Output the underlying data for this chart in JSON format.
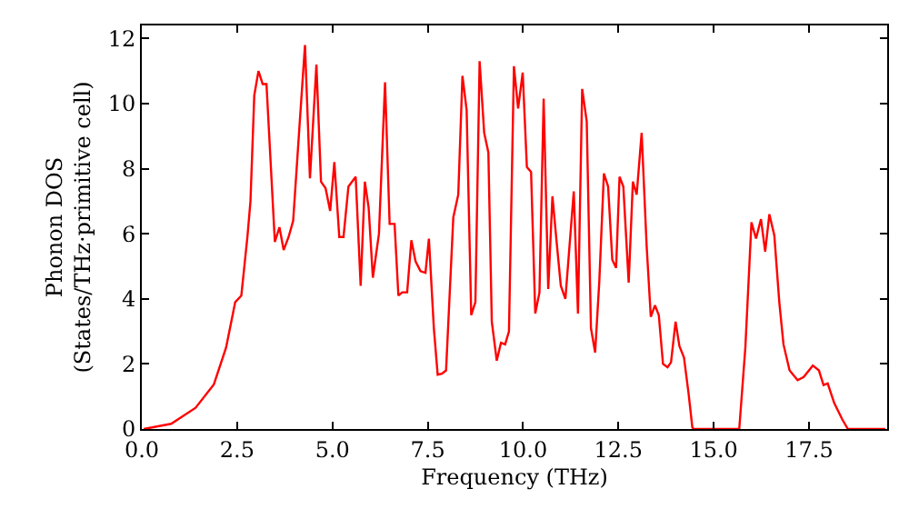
{
  "chart_data": {
    "type": "line",
    "xlabel": "Frequency (THz)",
    "ylabel": "Phonon DOS\n(States/THz·primitive cell)",
    "xlim": [
      0,
      19.55
    ],
    "ylim": [
      0,
      12.4
    ],
    "xticks": [
      {
        "value": 0,
        "label": "0.0"
      },
      2.5,
      {
        "value": 5,
        "label": "5.0"
      },
      7.5,
      {
        "value": 10,
        "label": "10.0"
      },
      12.5,
      {
        "value": 15,
        "label": "15.0"
      },
      17.5
    ],
    "yticks": [
      0,
      2,
      4,
      6,
      8,
      10,
      12
    ],
    "marker": "none",
    "line_style": "solid",
    "series": [
      {
        "color": "#ff0000",
        "x": [
          0.05,
          0.77,
          1.41,
          1.89,
          2.21,
          2.45,
          2.61,
          2.77,
          2.85,
          2.95,
          3.06,
          3.17,
          3.27,
          3.49,
          3.61,
          3.72,
          3.85,
          3.97,
          4.13,
          4.28,
          4.41,
          4.58,
          4.7,
          4.82,
          4.94,
          5.05,
          5.18,
          5.29,
          5.42,
          5.61,
          5.74,
          5.85,
          5.95,
          6.06,
          6.22,
          6.38,
          6.5,
          6.63,
          6.73,
          6.83,
          6.96,
          7.07,
          7.18,
          7.31,
          7.44,
          7.53,
          7.66,
          7.76,
          7.87,
          7.98,
          8.17,
          8.3,
          8.41,
          8.52,
          8.64,
          8.75,
          8.86,
          8.98,
          9.09,
          9.18,
          9.31,
          9.42,
          9.53,
          9.63,
          9.76,
          9.87,
          9.99,
          10.1,
          10.21,
          10.32,
          10.43,
          10.54,
          10.66,
          10.77,
          10.88,
          10.99,
          11.11,
          11.22,
          11.33,
          11.44,
          11.55,
          11.67,
          11.78,
          11.89,
          12.0,
          12.12,
          12.23,
          12.34,
          12.44,
          12.53,
          12.63,
          12.77,
          12.88,
          12.98,
          13.11,
          13.24,
          13.35,
          13.46,
          13.56,
          13.67,
          13.79,
          13.88,
          14.0,
          14.1,
          14.22,
          14.34,
          14.44,
          14.47,
          15.67,
          15.83,
          15.99,
          16.11,
          16.24,
          16.35,
          16.46,
          16.59,
          16.72,
          16.83,
          16.99,
          17.2,
          17.36,
          17.6,
          17.76,
          17.88,
          17.99,
          18.16,
          18.37,
          18.52,
          19.5
        ],
        "values": [
          0,
          0.16,
          0.65,
          1.37,
          2.5,
          3.9,
          4.1,
          5.9,
          7.0,
          10.25,
          11.0,
          10.6,
          10.6,
          5.75,
          6.2,
          5.5,
          5.9,
          6.4,
          9.2,
          11.8,
          7.7,
          11.2,
          7.6,
          7.4,
          6.7,
          8.2,
          5.9,
          5.9,
          7.45,
          7.75,
          4.4,
          7.6,
          6.8,
          4.65,
          6.0,
          10.65,
          6.3,
          6.3,
          4.1,
          4.2,
          4.2,
          5.8,
          5.15,
          4.85,
          4.8,
          5.85,
          3.1,
          1.67,
          1.7,
          1.8,
          6.5,
          7.2,
          10.85,
          9.8,
          3.5,
          3.9,
          11.3,
          9.1,
          8.5,
          3.3,
          2.1,
          2.65,
          2.6,
          3.0,
          11.15,
          9.85,
          10.95,
          8.05,
          7.9,
          3.55,
          4.2,
          10.15,
          4.3,
          7.15,
          5.75,
          4.4,
          4.0,
          5.65,
          7.3,
          3.55,
          10.45,
          9.45,
          3.1,
          2.35,
          4.55,
          7.85,
          7.45,
          5.2,
          4.95,
          7.75,
          7.45,
          4.5,
          7.6,
          7.2,
          9.1,
          5.65,
          3.45,
          3.8,
          3.5,
          2.0,
          1.9,
          2.05,
          3.3,
          2.55,
          2.2,
          1.1,
          0.05,
          0,
          0,
          2.5,
          6.35,
          5.85,
          6.45,
          5.45,
          6.6,
          5.95,
          3.9,
          2.6,
          1.8,
          1.5,
          1.6,
          1.95,
          1.8,
          1.35,
          1.4,
          0.8,
          0.3,
          0,
          0
        ]
      }
    ]
  }
}
